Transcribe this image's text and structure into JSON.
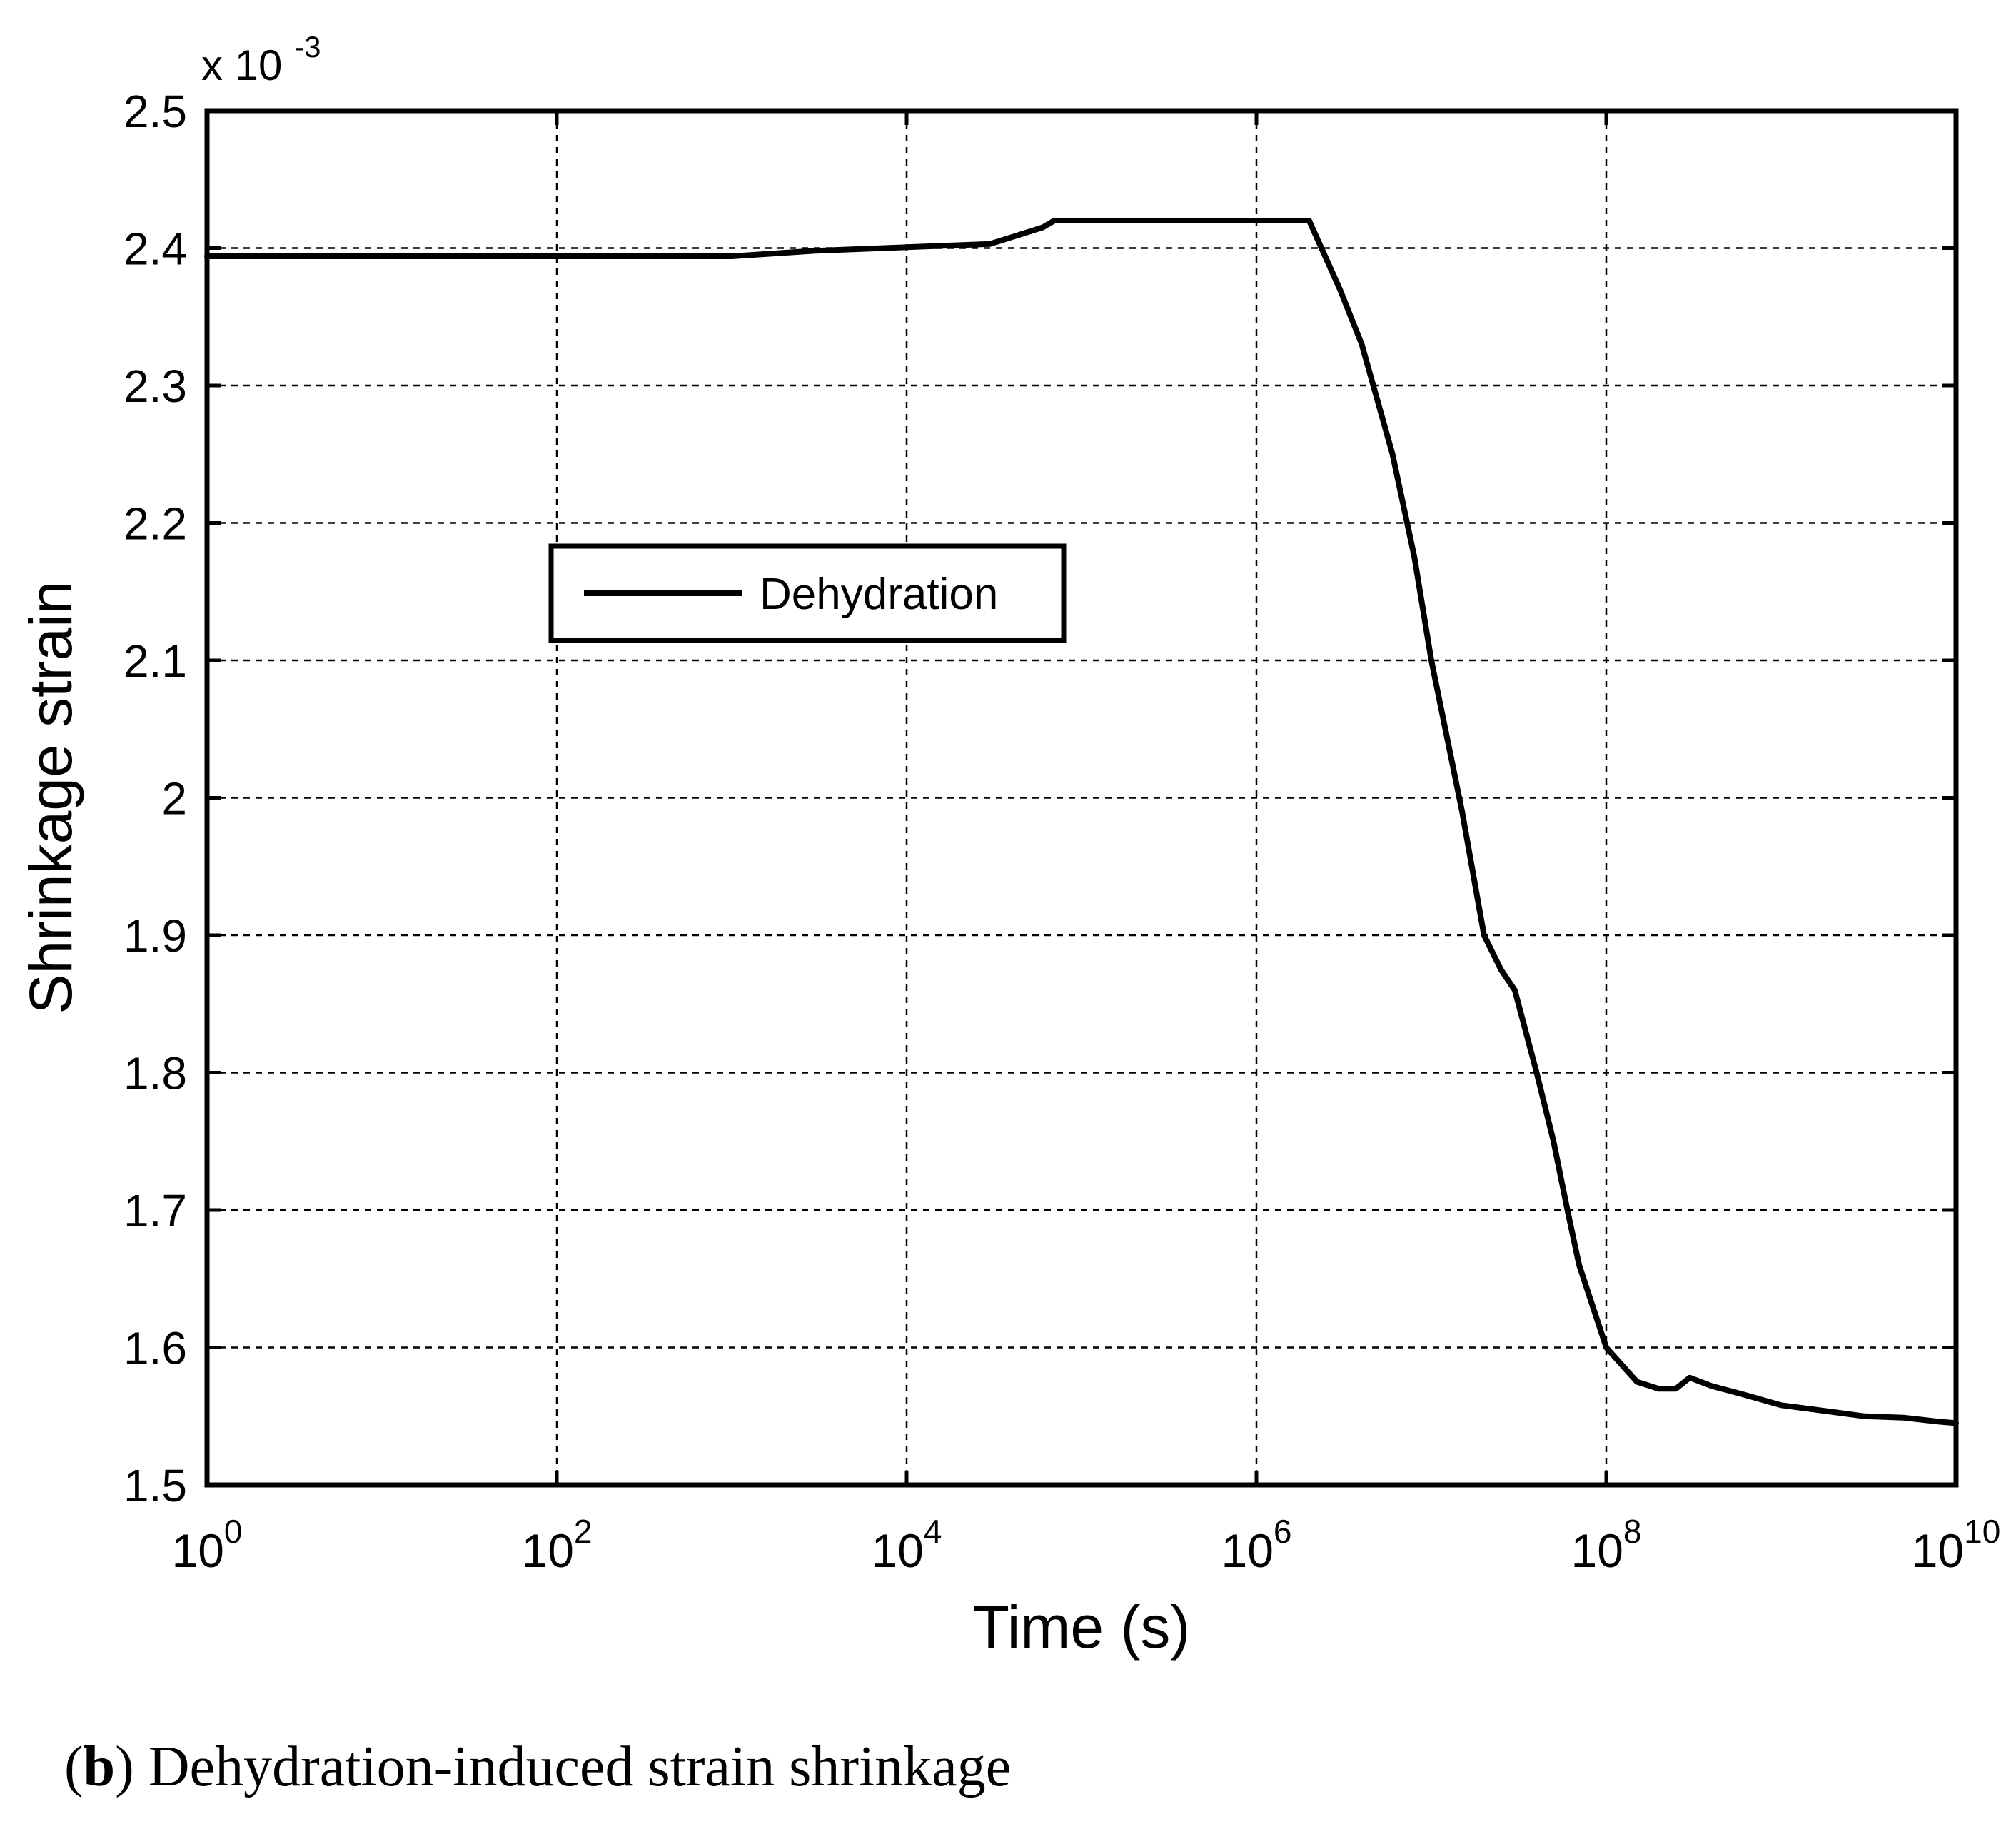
{
  "chart_data": {
    "type": "line",
    "x_scale": "log",
    "xlabel": "Time (s)",
    "ylabel": "Shrinkage strain",
    "y_multiplier_label": "x 10",
    "y_multiplier_exponent": "-3",
    "xlim": [
      1,
      10000000000
    ],
    "ylim": [
      1.5,
      2.5
    ],
    "x_ticks": [
      {
        "base": "10",
        "exp": "0",
        "value": 1
      },
      {
        "base": "10",
        "exp": "2",
        "value": 100
      },
      {
        "base": "10",
        "exp": "4",
        "value": 10000
      },
      {
        "base": "10",
        "exp": "6",
        "value": 1000000
      },
      {
        "base": "10",
        "exp": "8",
        "value": 100000000
      },
      {
        "base": "10",
        "exp": "10",
        "value": 10000000000
      }
    ],
    "y_ticks": [
      "1.5",
      "1.6",
      "1.7",
      "1.8",
      "1.9",
      "2",
      "2.1",
      "2.2",
      "2.3",
      "2.4",
      "2.5"
    ],
    "grid": true,
    "legend_placement": "upper-left-center",
    "series": [
      {
        "name": "Dehydration",
        "color": "#000000",
        "x": [
          1,
          1000,
          3000,
          30000,
          60000,
          70000,
          1000000,
          2000000,
          3000000,
          4000000,
          6000000,
          8000000,
          10000000,
          15000000,
          20000000,
          25000000,
          30000000,
          40000000,
          50000000,
          60000000,
          70000000,
          100000000,
          150000000,
          200000000,
          250000000,
          300000000,
          400000000,
          600000000,
          1000000000,
          2000000000,
          3000000000,
          5000000000,
          8000000000,
          10000000000
        ],
        "y": [
          2.394,
          2.394,
          2.398,
          2.403,
          2.415,
          2.42,
          2.42,
          2.42,
          2.37,
          2.33,
          2.25,
          2.175,
          2.1,
          1.99,
          1.9,
          1.875,
          1.86,
          1.8,
          1.75,
          1.7,
          1.66,
          1.6,
          1.575,
          1.57,
          1.57,
          1.578,
          1.572,
          1.566,
          1.558,
          1.553,
          1.55,
          1.549,
          1.546,
          1.545
        ]
      }
    ]
  },
  "caption": {
    "label": "b",
    "text": "Dehydration-induced strain shrinkage"
  }
}
